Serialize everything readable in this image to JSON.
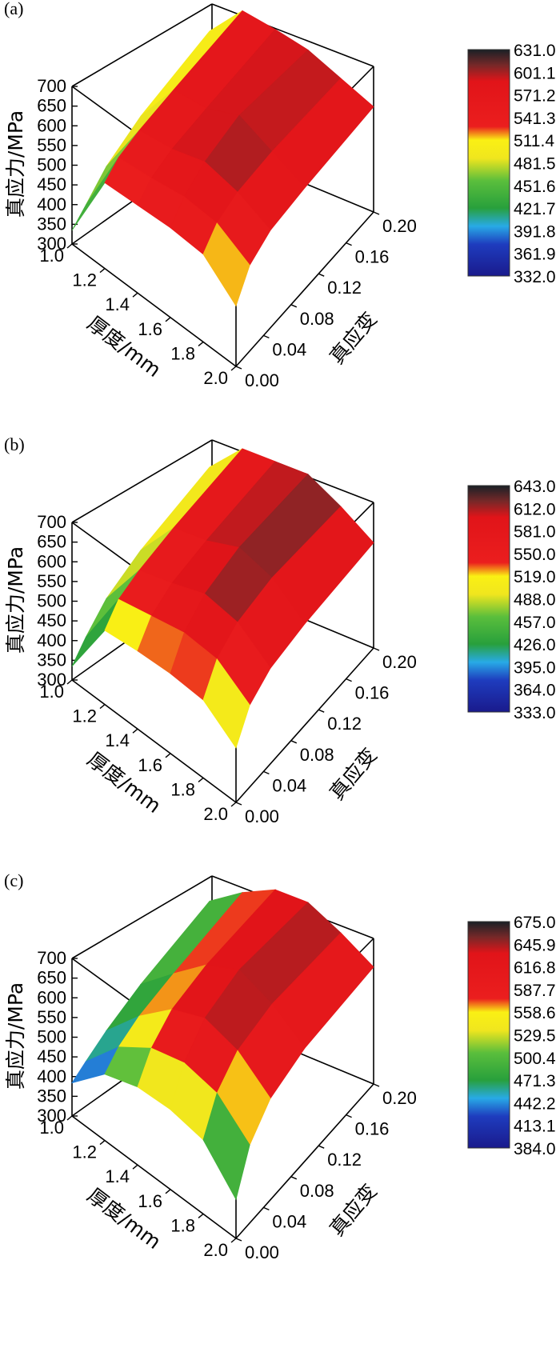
{
  "chart_data": [
    {
      "type": "surface3d",
      "panel_label": "(a)",
      "zlabel": "真应力/MPa",
      "xlabel": "厚度/mm",
      "ylabel": "真应变",
      "z_ticks": [
        "300",
        "350",
        "400",
        "450",
        "500",
        "550",
        "600",
        "650",
        "700"
      ],
      "x_ticks": [
        "1.0",
        "1.2",
        "1.4",
        "1.6",
        "1.8",
        "2.0"
      ],
      "y_ticks": [
        "0.00",
        "0.04",
        "0.08",
        "0.12",
        "0.16",
        "0.20"
      ],
      "zlim": [
        300,
        700
      ],
      "xlim": [
        1.0,
        2.0
      ],
      "ylim": [
        0.0,
        0.2
      ],
      "colorbar_ticks": [
        "631.0",
        "601.1",
        "571.2",
        "541.3",
        "511.4",
        "481.5",
        "451.6",
        "421.7",
        "391.8",
        "361.9",
        "332.0"
      ],
      "thickness_mm": [
        1.0,
        1.2,
        1.4,
        1.6,
        1.8,
        2.0
      ],
      "profiles": [
        {
          "thickness": 1.0,
          "strain": [
            0.0,
            0.02,
            0.05,
            0.1,
            0.2
          ],
          "stress": [
            335,
            360,
            400,
            430,
            450
          ]
        },
        {
          "thickness": 1.2,
          "strain": [
            0.0,
            0.02,
            0.05,
            0.1,
            0.2
          ],
          "stress": [
            520,
            545,
            555,
            560,
            565
          ]
        },
        {
          "thickness": 1.4,
          "strain": [
            0.0,
            0.02,
            0.05,
            0.1,
            0.2
          ],
          "stress": [
            525,
            555,
            570,
            575,
            580
          ]
        },
        {
          "thickness": 1.6,
          "strain": [
            0.0,
            0.02,
            0.05,
            0.1,
            0.2
          ],
          "stress": [
            530,
            570,
            600,
            620,
            590
          ]
        },
        {
          "thickness": 1.8,
          "strain": [
            0.0,
            0.02,
            0.05,
            0.1,
            0.2
          ],
          "stress": [
            525,
            565,
            585,
            590,
            580
          ]
        },
        {
          "thickness": 2.0,
          "strain": [
            0.0,
            0.02,
            0.05,
            0.1,
            0.2
          ],
          "stress": [
            455,
            520,
            550,
            560,
            570
          ]
        }
      ]
    },
    {
      "type": "surface3d",
      "panel_label": "(b)",
      "zlabel": "真应力/MPa",
      "xlabel": "厚度/mm",
      "ylabel": "真应变",
      "z_ticks": [
        "300",
        "350",
        "400",
        "450",
        "500",
        "550",
        "600",
        "650",
        "700"
      ],
      "x_ticks": [
        "1.0",
        "1.2",
        "1.4",
        "1.6",
        "1.8",
        "2.0"
      ],
      "y_ticks": [
        "0.00",
        "0.04",
        "0.08",
        "0.12",
        "0.16",
        "0.20"
      ],
      "zlim": [
        300,
        700
      ],
      "xlim": [
        1.0,
        2.0
      ],
      "ylim": [
        0.0,
        0.2
      ],
      "colorbar_ticks": [
        "643.0",
        "612.0",
        "581.0",
        "550.0",
        "519.0",
        "488.0",
        "457.0",
        "426.0",
        "395.0",
        "364.0",
        "333.0"
      ],
      "thickness_mm": [
        1.0,
        1.2,
        1.4,
        1.6,
        1.8,
        2.0
      ],
      "profiles": [
        {
          "thickness": 1.0,
          "strain": [
            0.0,
            0.02,
            0.05,
            0.1,
            0.2
          ],
          "stress": [
            335,
            370,
            410,
            435,
            450
          ]
        },
        {
          "thickness": 1.2,
          "strain": [
            0.0,
            0.02,
            0.05,
            0.1,
            0.2
          ],
          "stress": [
            490,
            530,
            545,
            555,
            560
          ]
        },
        {
          "thickness": 1.4,
          "strain": [
            0.0,
            0.02,
            0.05,
            0.1,
            0.2
          ],
          "stress": [
            500,
            550,
            575,
            585,
            590
          ]
        },
        {
          "thickness": 1.6,
          "strain": [
            0.0,
            0.02,
            0.05,
            0.1,
            0.2
          ],
          "stress": [
            505,
            570,
            610,
            630,
            620
          ]
        },
        {
          "thickness": 1.8,
          "strain": [
            0.0,
            0.02,
            0.05,
            0.1,
            0.2
          ],
          "stress": [
            500,
            565,
            600,
            615,
            600
          ]
        },
        {
          "thickness": 2.0,
          "strain": [
            0.0,
            0.02,
            0.05,
            0.1,
            0.2
          ],
          "stress": [
            440,
            510,
            545,
            560,
            570
          ]
        }
      ]
    },
    {
      "type": "surface3d",
      "panel_label": "(c)",
      "zlabel": "真应力/MPa",
      "xlabel": "厚度/mm",
      "ylabel": "真应变",
      "z_ticks": [
        "300",
        "350",
        "400",
        "450",
        "500",
        "550",
        "600",
        "650",
        "700"
      ],
      "x_ticks": [
        "1.0",
        "1.2",
        "1.4",
        "1.6",
        "1.8",
        "2.0"
      ],
      "y_ticks": [
        "0.00",
        "0.04",
        "0.08",
        "0.12",
        "0.16",
        "0.20"
      ],
      "zlim": [
        300,
        700
      ],
      "xlim": [
        1.0,
        2.0
      ],
      "ylim": [
        0.0,
        0.2
      ],
      "colorbar_ticks": [
        "675.0",
        "645.9",
        "616.8",
        "587.7",
        "558.6",
        "529.5",
        "500.4",
        "471.3",
        "442.2",
        "413.1",
        "384.0"
      ],
      "thickness_mm": [
        1.0,
        1.2,
        1.4,
        1.6,
        1.8,
        2.0
      ],
      "profiles": [
        {
          "thickness": 1.0,
          "strain": [
            0.0,
            0.02,
            0.05,
            0.1,
            0.2
          ],
          "stress": [
            385,
            400,
            420,
            440,
            455
          ]
        },
        {
          "thickness": 1.2,
          "strain": [
            0.0,
            0.02,
            0.05,
            0.1,
            0.2
          ],
          "stress": [
            470,
            500,
            520,
            530,
            540
          ]
        },
        {
          "thickness": 1.4,
          "strain": [
            0.0,
            0.02,
            0.05,
            0.1,
            0.2
          ],
          "stress": [
            500,
            560,
            600,
            615,
            610
          ]
        },
        {
          "thickness": 1.6,
          "strain": [
            0.0,
            0.02,
            0.05,
            0.1,
            0.2
          ],
          "stress": [
            505,
            585,
            640,
            665,
            640
          ]
        },
        {
          "thickness": 1.8,
          "strain": [
            0.0,
            0.02,
            0.05,
            0.1,
            0.2
          ],
          "stress": [
            490,
            570,
            620,
            640,
            625
          ]
        },
        {
          "thickness": 2.0,
          "strain": [
            0.0,
            0.02,
            0.05,
            0.1,
            0.2
          ],
          "stress": [
            400,
            500,
            560,
            590,
            600
          ]
        }
      ]
    }
  ]
}
